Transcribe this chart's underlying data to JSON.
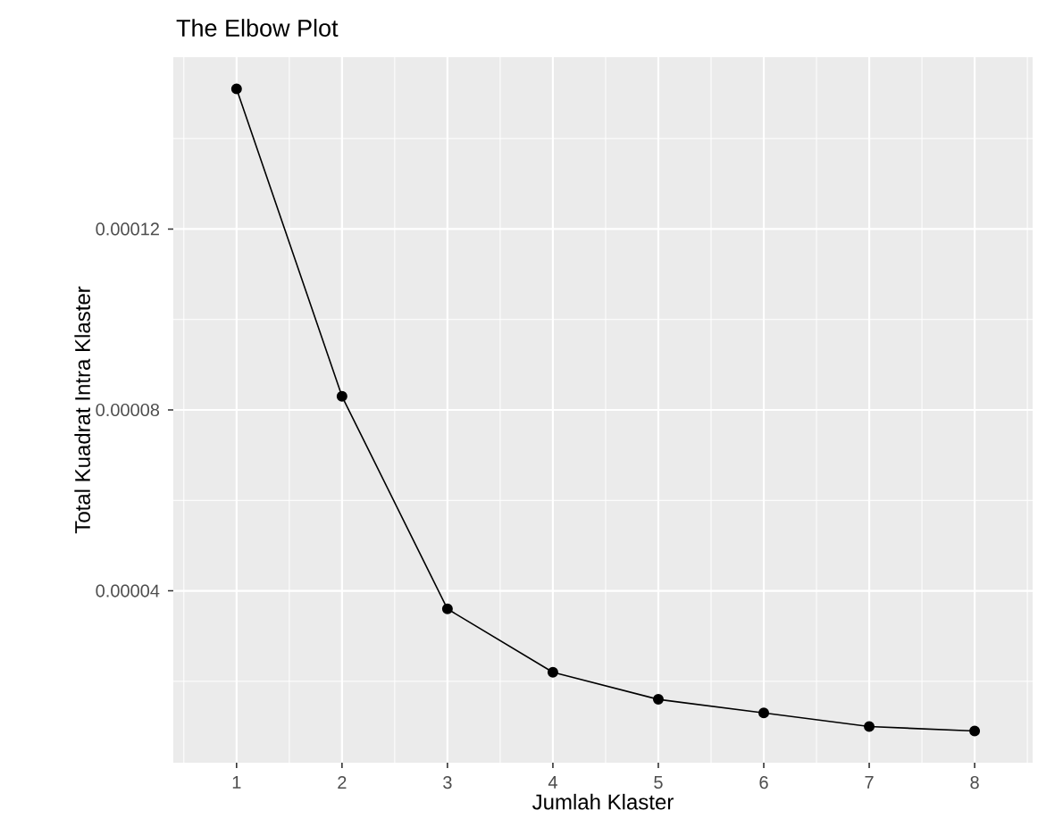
{
  "chart_data": {
    "type": "line",
    "title": "The Elbow Plot",
    "xlabel": "Jumlah Klaster",
    "ylabel": "Total Kuadrat Intra Klaster",
    "x": [
      1,
      2,
      3,
      4,
      5,
      6,
      7,
      8
    ],
    "values": [
      0.000151,
      8.3e-05,
      3.6e-05,
      2.2e-05,
      1.6e-05,
      1.3e-05,
      1e-05,
      9e-06
    ],
    "color": "#000000",
    "marker": "circle",
    "line_style": "solid",
    "grid": true,
    "xlim": [
      0.4,
      8.55
    ],
    "xticks": [
      1,
      2,
      3,
      4,
      5,
      6,
      7,
      8
    ],
    "ylim": [
      2e-06,
      0.000158
    ],
    "yticks": [
      {
        "value": 4e-05,
        "label": "0.00004"
      },
      {
        "value": 8e-05,
        "label": "0.00008"
      },
      {
        "value": 0.00012,
        "label": "0.00012"
      }
    ]
  }
}
